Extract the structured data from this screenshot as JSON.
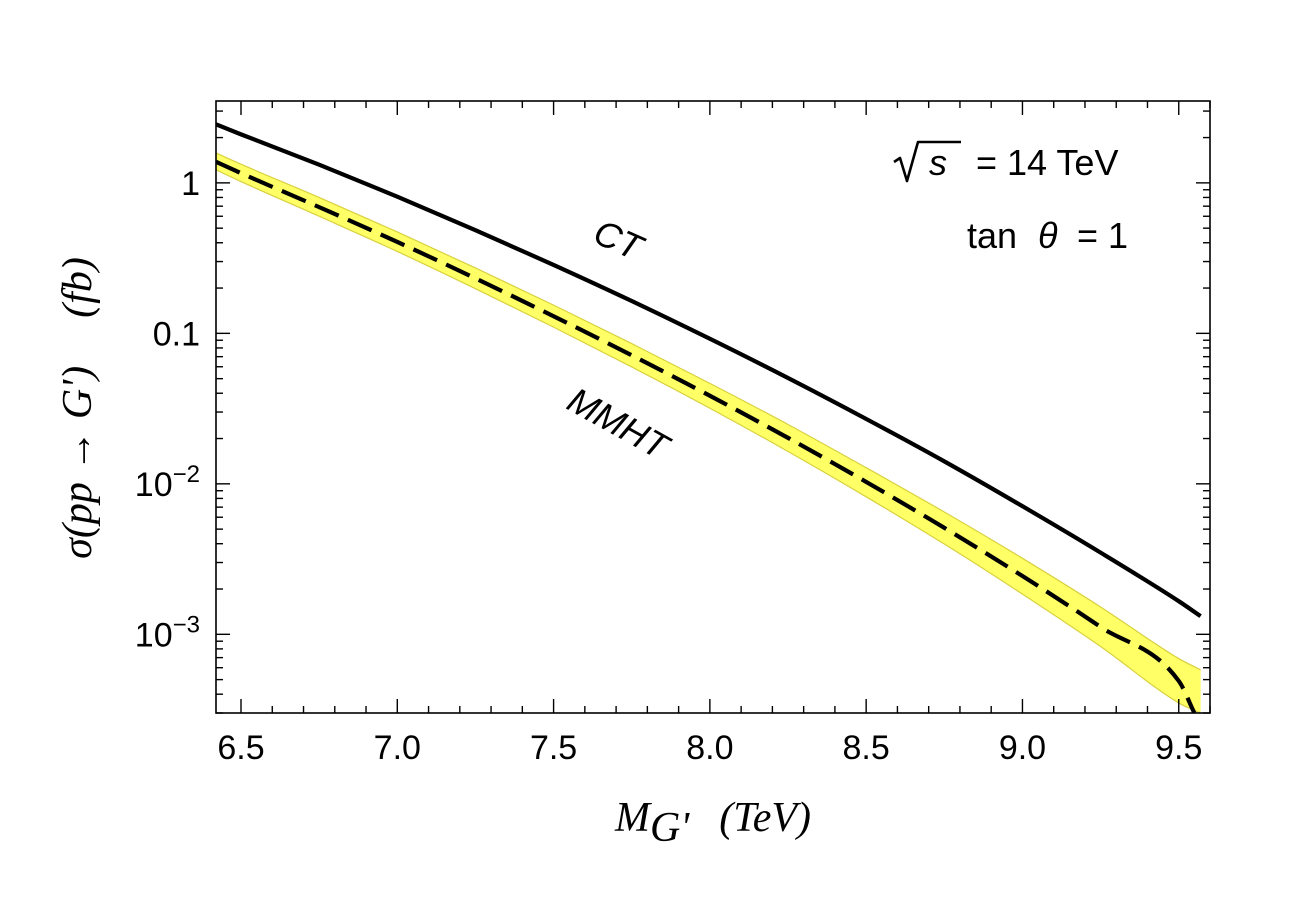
{
  "chart_data": {
    "type": "line",
    "xlim": [
      6.42,
      9.6
    ],
    "ylim": [
      0.0003,
      3.5
    ],
    "y_scale": "log",
    "grid": false,
    "xticks": [
      6.5,
      7.0,
      7.5,
      8.0,
      8.5,
      9.0,
      9.5
    ],
    "xtick_labels": [
      "6.5",
      "7.0",
      "7.5",
      "8.0",
      "8.5",
      "9.0",
      "9.5"
    ],
    "yticks": [
      {
        "value": 1,
        "base": "1",
        "exp": ""
      },
      {
        "value": 0.1,
        "base": "0.1",
        "exp": ""
      },
      {
        "value": 0.01,
        "base": "10",
        "exp": "−2"
      },
      {
        "value": 0.001,
        "base": "10",
        "exp": "−3"
      }
    ],
    "xlabel": {
      "main": "M",
      "sub": "G'",
      "unit": "(TeV)"
    },
    "ylabel": {
      "main": "σ(pp → G')",
      "unit": "(fb)"
    },
    "annotations": {
      "sqrt_s": {
        "symbol": "s",
        "text": "= 14 TeV"
      },
      "tan_theta": {
        "prefix": "tan",
        "symbol": "θ",
        "text": "= 1"
      }
    },
    "series": [
      {
        "name": "CT",
        "style": "solid",
        "color": "#000000",
        "x": [
          6.42,
          6.5,
          6.75,
          7.0,
          7.25,
          7.5,
          7.75,
          8.0,
          8.25,
          8.5,
          8.75,
          9.0,
          9.25,
          9.5,
          9.57
        ],
        "y": [
          2.45,
          2.1,
          1.32,
          0.81,
          0.485,
          0.285,
          0.164,
          0.092,
          0.0505,
          0.027,
          0.0141,
          0.0071,
          0.00349,
          0.00166,
          0.00132
        ]
      },
      {
        "name": "MMHT",
        "style": "dashed",
        "color": "#000000",
        "x": [
          6.42,
          6.5,
          6.75,
          7.0,
          7.25,
          7.5,
          7.75,
          8.0,
          8.25,
          8.5,
          8.75,
          9.0,
          9.25,
          9.5,
          9.55
        ],
        "y": [
          1.38,
          1.16,
          0.69,
          0.405,
          0.232,
          0.13,
          0.0715,
          0.0385,
          0.0202,
          0.0103,
          0.0051,
          0.00244,
          0.00112,
          0.00049,
          0.0003
        ],
        "band": {
          "color": "#ffff66",
          "edge_color": "#d8d040",
          "x": [
            6.42,
            6.5,
            6.75,
            7.0,
            7.25,
            7.5,
            7.75,
            8.0,
            8.25,
            8.5,
            8.75,
            9.0,
            9.25,
            9.5,
            9.57
          ],
          "upper": [
            1.58,
            1.33,
            0.8,
            0.472,
            0.272,
            0.154,
            0.0855,
            0.0465,
            0.0248,
            0.0128,
            0.0065,
            0.0032,
            0.00152,
            0.00069,
            0.00058
          ],
          "lower": [
            1.22,
            1.02,
            0.6,
            0.35,
            0.198,
            0.11,
            0.0598,
            0.0318,
            0.0164,
            0.0082,
            0.00398,
            0.00185,
            0.00083,
            0.00035,
            0.0003
          ]
        }
      }
    ]
  }
}
